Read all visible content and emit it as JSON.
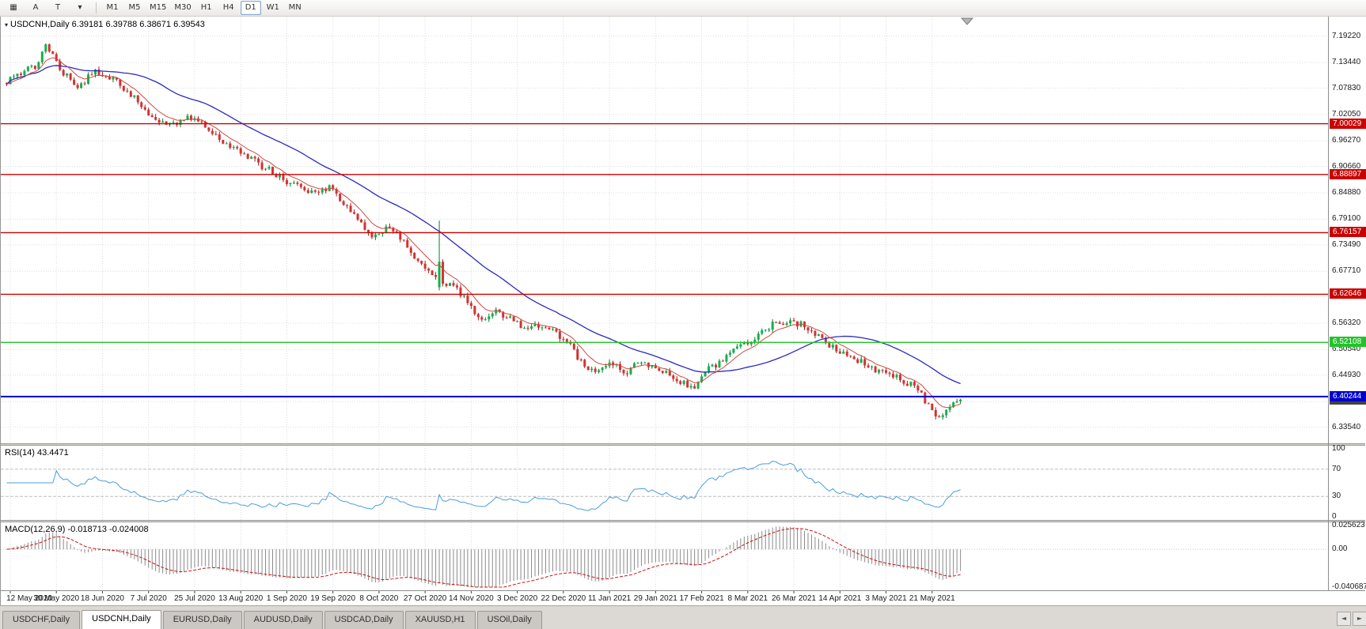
{
  "toolbar": {
    "tools": [
      {
        "name": "chart-window-icon",
        "glyph": "▦"
      },
      {
        "name": "cursor-tool",
        "glyph": "A"
      },
      {
        "name": "text-tool",
        "glyph": "T"
      },
      {
        "name": "draw-dropdown-icon",
        "glyph": "▾"
      }
    ],
    "timeframes": [
      "M1",
      "M5",
      "M15",
      "M30",
      "H1",
      "H4",
      "D1",
      "W1",
      "MN"
    ],
    "active_timeframe": "D1"
  },
  "chart": {
    "menu_icon": "▾",
    "symbol_label": "USDCNH,Daily",
    "ohlc_label": "6.39181 6.39788 6.38671 6.39543",
    "current_price": {
      "label": "6.39543",
      "color": "#424242"
    }
  },
  "rsi": {
    "label": "RSI(14) 43.4471"
  },
  "macd": {
    "label": "MACD(12,26,9) -0.018713 -0.024008"
  },
  "tabbar": {
    "tabs": [
      {
        "label": "USDCHF,Daily",
        "active": false
      },
      {
        "label": "USDCNH,Daily",
        "active": true
      },
      {
        "label": "EURUSD,Daily",
        "active": false
      },
      {
        "label": "AUDUSD,Daily",
        "active": false
      },
      {
        "label": "USDCAD,Daily",
        "active": false
      },
      {
        "label": "XAUUSD,H1",
        "active": false
      },
      {
        "label": "USOil,Daily",
        "active": false
      }
    ],
    "scroll_left": "◄",
    "scroll_right": "►"
  },
  "chart_data": {
    "type": "candlestick",
    "symbol": "USDCNH",
    "timeframe": "Daily",
    "last_ohlc": {
      "open": 6.39181,
      "high": 6.39788,
      "low": 6.38671,
      "close": 6.39543
    },
    "ylim": [
      6.3,
      7.235
    ],
    "num_candles": 270,
    "price_axis_labels": [
      "7.19220",
      "7.13440",
      "7.07830",
      "7.02050",
      "6.96270",
      "6.90660",
      "6.84880",
      "6.79100",
      "6.73490",
      "6.67710",
      "6.62130",
      "6.56320",
      "6.50540",
      "6.44930",
      "6.39150",
      "6.33540"
    ],
    "hlines": [
      {
        "label": "7.00029",
        "value": 7.00029,
        "color": "#cc0000",
        "width": 1.4
      },
      {
        "label": "6.88897",
        "value": 6.88897,
        "color": "#cc0000",
        "width": 1.4
      },
      {
        "label": "6.76157",
        "value": 6.76157,
        "color": "#cc0000",
        "width": 1.4
      },
      {
        "label": "6.62646",
        "value": 6.62646,
        "color": "#cc0000",
        "width": 1.4
      },
      {
        "label": "6.52108",
        "value": 6.52108,
        "color": "#22c32a",
        "width": 1.4
      },
      {
        "label": "6.40244",
        "value": 6.40244,
        "color": "#0000cd",
        "width": 2
      }
    ],
    "date_labels": [
      "12 May 2020",
      "30 May 2020",
      "18 Jun 2020",
      "7 Jul 2020",
      "25 Jul 2020",
      "13 Aug 2020",
      "1 Sep 2020",
      "19 Sep 2020",
      "8 Oct 2020",
      "27 Oct 2020",
      "14 Nov 2020",
      "3 Dec 2020",
      "22 Dec 2020",
      "11 Jan 2021",
      "29 Jan 2021",
      "17 Feb 2021",
      "8 Mar 2021",
      "26 Mar 2021",
      "14 Apr 2021",
      "3 May 2021",
      "21 May 2021"
    ],
    "date_tick_first_index": 1,
    "date_tick_interval": 13,
    "candle_up_color": "#10b24a",
    "candle_up_wick_color": "#0a7a34",
    "candle_down_color": "#d63131",
    "candle_down_wick_color": "#9e1f1f",
    "ma_fast": {
      "period": 8,
      "color": "#cf4a3f"
    },
    "ma_slow": {
      "period": 34,
      "color": "#2a2ac0"
    },
    "price_path_anchors": [
      [
        0.0,
        7.09
      ],
      [
        0.01,
        7.105
      ],
      [
        0.03,
        7.125
      ],
      [
        0.04,
        7.175
      ],
      [
        0.045,
        7.16
      ],
      [
        0.06,
        7.11
      ],
      [
        0.075,
        7.085
      ],
      [
        0.095,
        7.115
      ],
      [
        0.115,
        7.09
      ],
      [
        0.135,
        7.055
      ],
      [
        0.155,
        7.01
      ],
      [
        0.175,
        7.0
      ],
      [
        0.19,
        7.02
      ],
      [
        0.21,
        6.99
      ],
      [
        0.23,
        6.955
      ],
      [
        0.25,
        6.93
      ],
      [
        0.27,
        6.905
      ],
      [
        0.29,
        6.88
      ],
      [
        0.31,
        6.858
      ],
      [
        0.325,
        6.842
      ],
      [
        0.34,
        6.86
      ],
      [
        0.355,
        6.825
      ],
      [
        0.37,
        6.782
      ],
      [
        0.385,
        6.752
      ],
      [
        0.4,
        6.778
      ],
      [
        0.415,
        6.742
      ],
      [
        0.43,
        6.7
      ],
      [
        0.445,
        6.672
      ],
      [
        0.455,
        6.652
      ],
      [
        0.47,
        6.648
      ],
      [
        0.485,
        6.602
      ],
      [
        0.5,
        6.572
      ],
      [
        0.515,
        6.592
      ],
      [
        0.53,
        6.568
      ],
      [
        0.545,
        6.548
      ],
      [
        0.56,
        6.558
      ],
      [
        0.575,
        6.545
      ],
      [
        0.59,
        6.518
      ],
      [
        0.605,
        6.47
      ],
      [
        0.62,
        6.458
      ],
      [
        0.635,
        6.472
      ],
      [
        0.65,
        6.458
      ],
      [
        0.665,
        6.478
      ],
      [
        0.68,
        6.468
      ],
      [
        0.695,
        6.452
      ],
      [
        0.71,
        6.432
      ],
      [
        0.72,
        6.415
      ],
      [
        0.73,
        6.458
      ],
      [
        0.745,
        6.472
      ],
      [
        0.76,
        6.498
      ],
      [
        0.775,
        6.518
      ],
      [
        0.79,
        6.542
      ],
      [
        0.805,
        6.562
      ],
      [
        0.82,
        6.57
      ],
      [
        0.835,
        6.558
      ],
      [
        0.85,
        6.535
      ],
      [
        0.865,
        6.512
      ],
      [
        0.88,
        6.492
      ],
      [
        0.895,
        6.478
      ],
      [
        0.91,
        6.462
      ],
      [
        0.925,
        6.448
      ],
      [
        0.94,
        6.438
      ],
      [
        0.95,
        6.425
      ],
      [
        0.96,
        6.402
      ],
      [
        0.968,
        6.375
      ],
      [
        0.976,
        6.358
      ],
      [
        0.984,
        6.368
      ],
      [
        0.992,
        6.388
      ],
      [
        1.0,
        6.395
      ]
    ],
    "spike": {
      "index": 122,
      "open": 6.642,
      "close": 6.698,
      "high": 6.788,
      "low": 6.635
    },
    "rsi": {
      "period": 14,
      "color": "#4a9ede",
      "levels": [
        70,
        30
      ],
      "axis_labels": [
        "100",
        "70",
        "30",
        "0"
      ],
      "last_value": 43.4471
    },
    "macd": {
      "fast": 12,
      "slow": 26,
      "signal": 9,
      "ylim": [
        -0.040687,
        0.025623
      ],
      "axis_labels": [
        "0.025623",
        "0.00",
        "-0.040687"
      ],
      "hist_color": "#8a8a8a",
      "signal_color": "#cc1111",
      "last_macd": -0.018713,
      "last_signal": -0.024008
    }
  }
}
